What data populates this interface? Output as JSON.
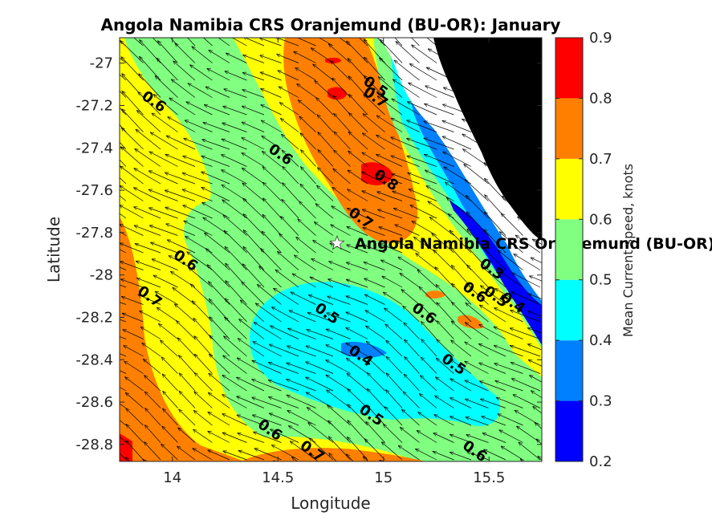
{
  "chart_data": {
    "type": "heatmap",
    "title": "Angola Namibia CRS Oranjemund (BU-OR): January",
    "xlabel": "Longitude",
    "ylabel": "Latitude",
    "xlim": [
      13.75,
      15.75
    ],
    "ylim": [
      -28.88,
      -26.88
    ],
    "xticks": [
      14,
      14.5,
      15,
      15.5
    ],
    "xtick_labels": [
      "14",
      "14.5",
      "15",
      "15.5"
    ],
    "yticks": [
      -27,
      -27.2,
      -27.4,
      -27.6,
      -27.8,
      -28,
      -28.2,
      -28.4,
      -28.6,
      -28.8
    ],
    "ytick_labels": [
      "-27",
      "-27.2",
      "-27.4",
      "-27.6",
      "-27.8",
      "-28",
      "-28.2",
      "-28.4",
      "-28.6",
      "-28.8"
    ],
    "grid": false,
    "colorbar": {
      "label": "Mean Current speed, knots",
      "range": [
        0.2,
        0.9
      ],
      "ticks": [
        "0.2",
        "0.3",
        "0.4",
        "0.5",
        "0.6",
        "0.7",
        "0.8",
        "0.9"
      ],
      "levels": [
        {
          "from": 0.2,
          "to": 0.3,
          "color": "#0000ff"
        },
        {
          "from": 0.3,
          "to": 0.4,
          "color": "#0080ff"
        },
        {
          "from": 0.4,
          "to": 0.5,
          "color": "#00ffff"
        },
        {
          "from": 0.5,
          "to": 0.6,
          "color": "#80ff80"
        },
        {
          "from": 0.6,
          "to": 0.7,
          "color": "#ffff00"
        },
        {
          "from": 0.7,
          "to": 0.8,
          "color": "#ff8000"
        },
        {
          "from": 0.8,
          "to": 0.9,
          "color": "#ff0000"
        }
      ]
    },
    "land_color": "#000000",
    "station": {
      "name": "Angola Namibia CRS Oranjemund (BU-OR)",
      "lon": 14.78,
      "lat": -27.85,
      "marker": "white star"
    },
    "contour_labels": [
      {
        "text": "0.6",
        "lon": 13.9,
        "lat": -27.2
      },
      {
        "text": "0.6",
        "lon": 14.5,
        "lat": -27.45
      },
      {
        "text": "0.6",
        "lon": 14.05,
        "lat": -27.95
      },
      {
        "text": "0.7",
        "lon": 13.88,
        "lat": -28.12
      },
      {
        "text": "0.5",
        "lon": 14.72,
        "lat": -28.2
      },
      {
        "text": "0.5",
        "lon": 14.95,
        "lat": -27.13
      },
      {
        "text": "0.7",
        "lon": 14.95,
        "lat": -27.18
      },
      {
        "text": "0.8",
        "lon": 15.0,
        "lat": -27.57
      },
      {
        "text": "0.7",
        "lon": 14.88,
        "lat": -27.75
      },
      {
        "text": "0.3",
        "lon": 15.5,
        "lat": -27.99
      },
      {
        "text": "0.6",
        "lon": 15.42,
        "lat": -28.1
      },
      {
        "text": "0.5",
        "lon": 15.52,
        "lat": -28.12
      },
      {
        "text": "0.4",
        "lon": 15.6,
        "lat": -28.15
      },
      {
        "text": "0.6",
        "lon": 15.18,
        "lat": -28.2
      },
      {
        "text": "0.4",
        "lon": 14.88,
        "lat": -28.4
      },
      {
        "text": "0.5",
        "lon": 15.32,
        "lat": -28.44
      },
      {
        "text": "0.5",
        "lon": 14.93,
        "lat": -28.68
      },
      {
        "text": "0.6",
        "lon": 14.45,
        "lat": -28.75
      },
      {
        "text": "0.7",
        "lon": 14.65,
        "lat": -28.85
      },
      {
        "text": "0.6",
        "lon": 15.42,
        "lat": -28.85
      }
    ]
  }
}
